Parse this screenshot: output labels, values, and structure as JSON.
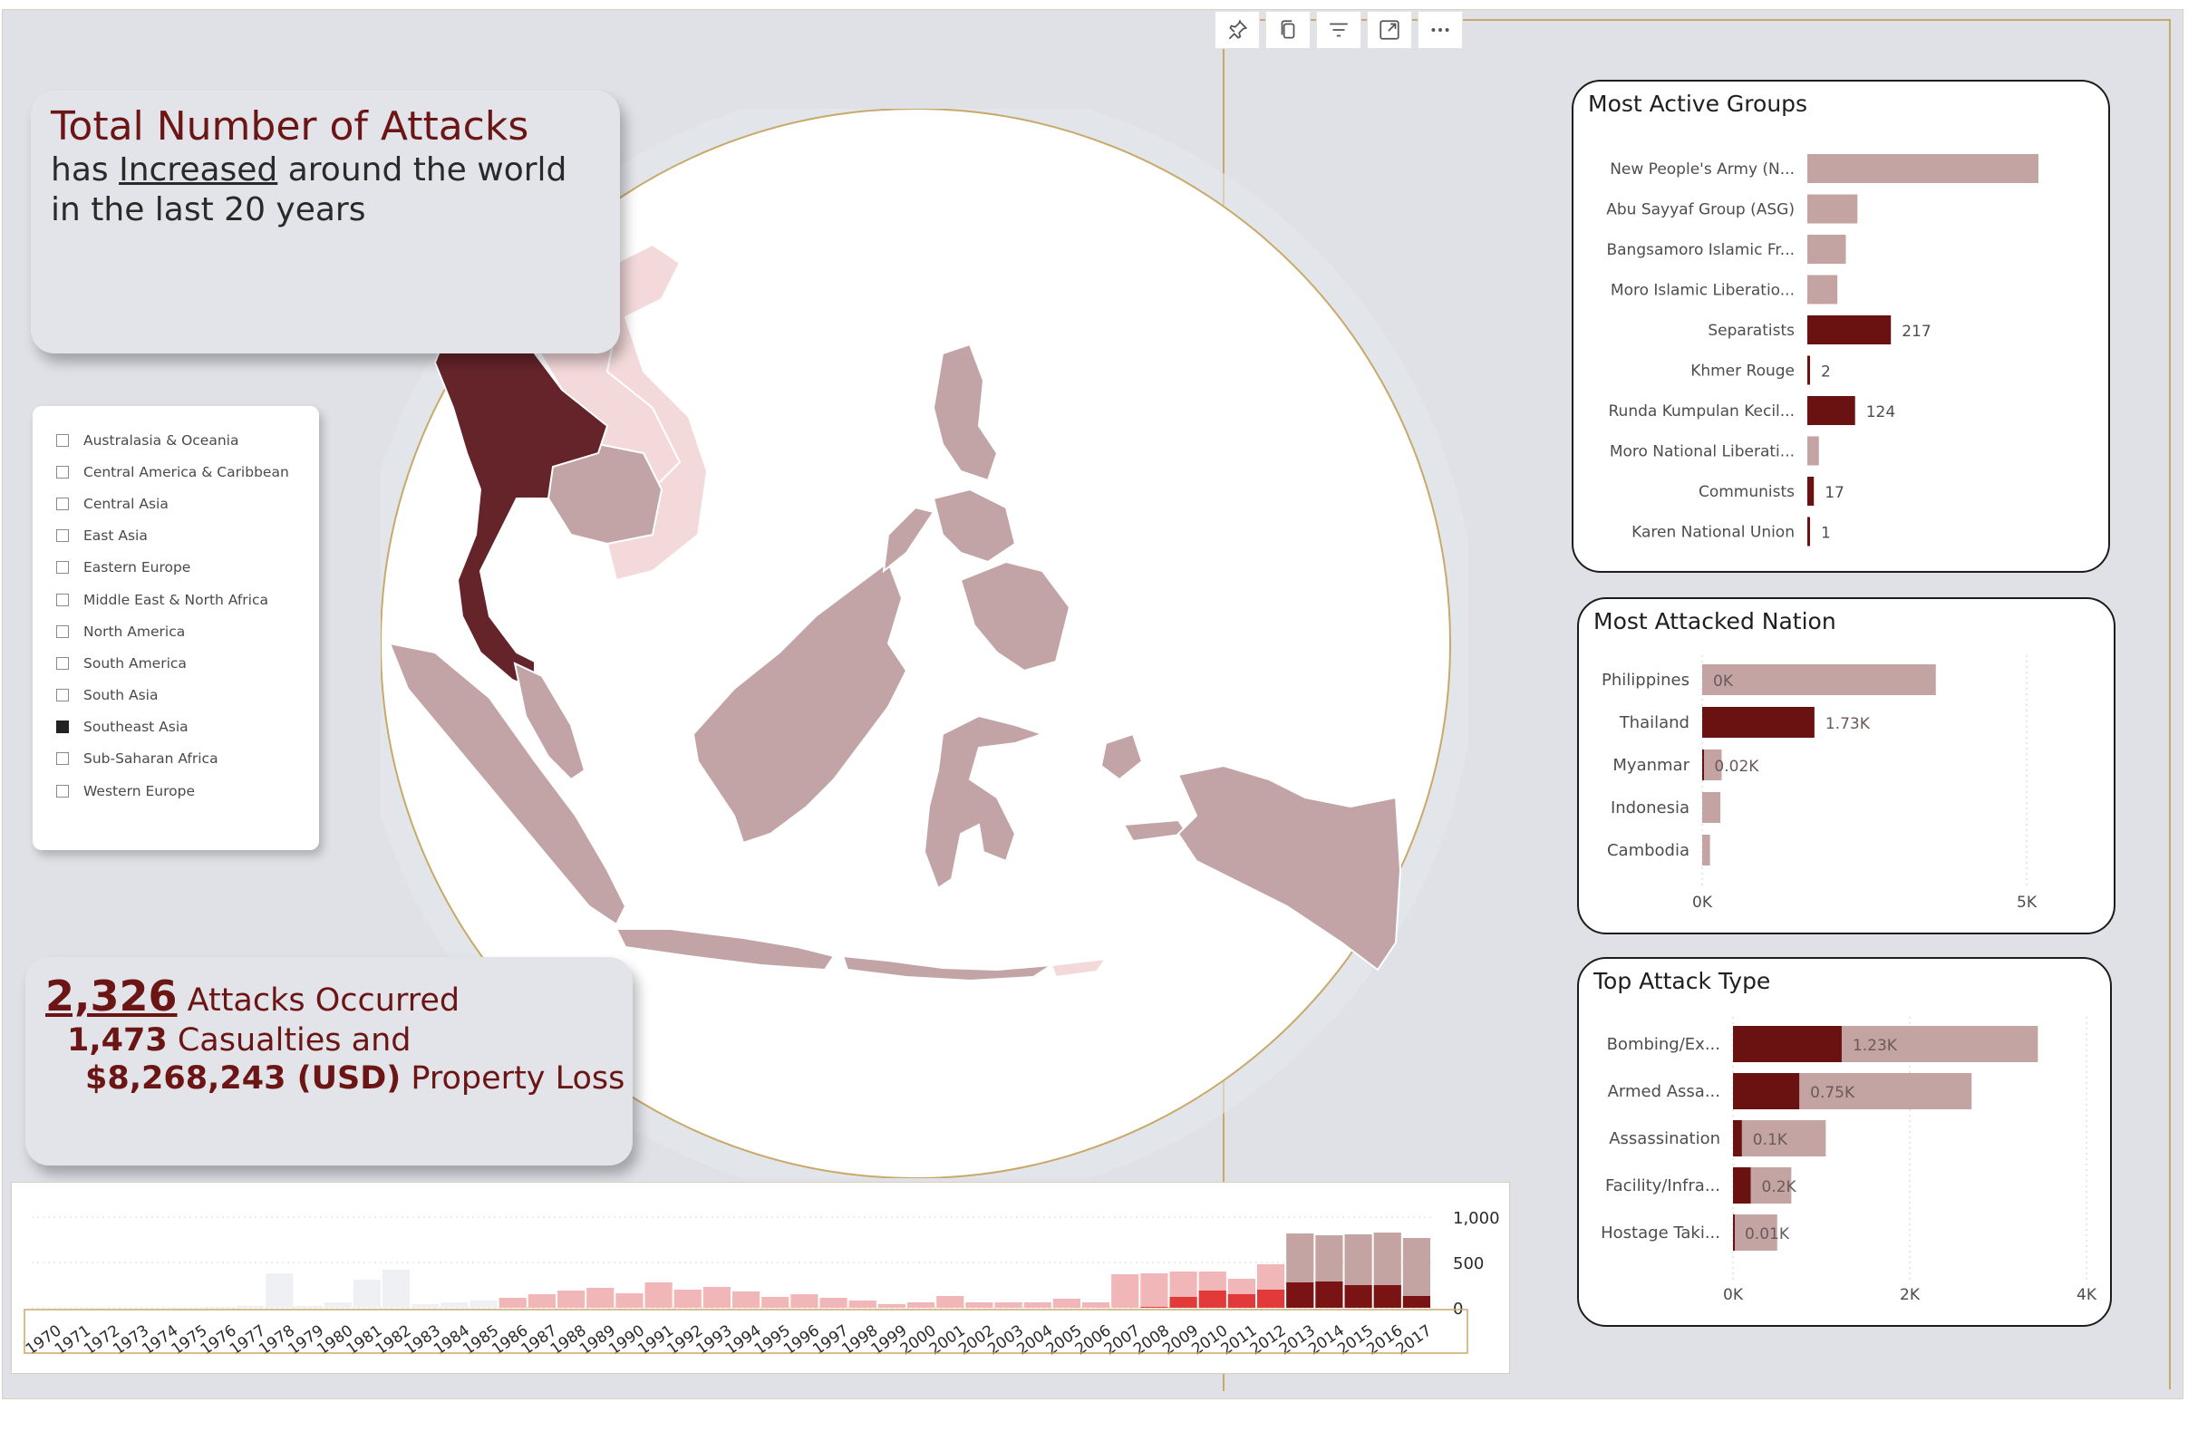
{
  "toolbar": {
    "icons": [
      "pin-icon",
      "copy-icon",
      "filter-icon",
      "expand-icon",
      "more-icon"
    ]
  },
  "title_card": {
    "line1": "Total Number of Attacks",
    "line2_pre": "has ",
    "line2_underlined": "Increased",
    "line2_post": " around the world",
    "line3": "in the last 20 years"
  },
  "region_filter": {
    "items": [
      {
        "label": "Australasia & Oceania",
        "checked": false
      },
      {
        "label": "Central America & Caribbean",
        "checked": false
      },
      {
        "label": "Central Asia",
        "checked": false
      },
      {
        "label": "East Asia",
        "checked": false
      },
      {
        "label": "Eastern Europe",
        "checked": false
      },
      {
        "label": "Middle East & North Africa",
        "checked": false
      },
      {
        "label": "North America",
        "checked": false
      },
      {
        "label": "South America",
        "checked": false
      },
      {
        "label": "South Asia",
        "checked": false
      },
      {
        "label": "Southeast Asia",
        "checked": true
      },
      {
        "label": "Sub-Saharan Africa",
        "checked": false
      },
      {
        "label": "Western Europe",
        "checked": false
      }
    ]
  },
  "stats": {
    "attacks": "2,326",
    "attacks_label": " Attacks Occurred",
    "casualties": "1,473",
    "casualties_label": " Casualties and",
    "property_loss": "$8,268,243 (USD)",
    "property_label": " Property Loss"
  },
  "colors": {
    "accent": "#6b1515",
    "bar_light": "#c4a3a3",
    "bar_dark": "#6a1212",
    "map_base": "#c2a4a6",
    "map_highlight": "#64242a",
    "map_faint": "#f3d9da",
    "gold": "#c9a96a"
  },
  "chart_data": [
    {
      "type": "bar",
      "title": "Most Active Groups",
      "categories": [
        "New People's Army (N...",
        "Abu Sayyaf Group (ASG)",
        "Bangsamoro Islamic Fr...",
        "Moro Islamic Liberatio...",
        "Separatists",
        "Khmer Rouge",
        "Runda Kumpulan Kecil...",
        "Moro National Liberati...",
        "Communists",
        "Karen National Union"
      ],
      "values": [
        600,
        130,
        100,
        78,
        217,
        2,
        124,
        30,
        17,
        1
      ],
      "highlighted": [
        false,
        false,
        false,
        false,
        true,
        true,
        true,
        false,
        true,
        true
      ],
      "data_labels": [
        "",
        "",
        "",
        "",
        "217",
        "2",
        "124",
        "",
        "17",
        "1"
      ]
    },
    {
      "type": "bar",
      "title": "Most Attacked Nation",
      "categories": [
        "Philippines",
        "Thailand",
        "Myanmar",
        "Indonesia",
        "Cambodia"
      ],
      "total_values": [
        3600,
        0,
        300,
        280,
        120
      ],
      "highlight_values": [
        0,
        1730,
        20,
        0,
        0
      ],
      "data_labels": [
        "0K",
        "1.73K",
        "0.02K",
        "",
        ""
      ],
      "xlim": [
        0,
        5000
      ],
      "x_ticks": [
        "0K",
        "5K"
      ]
    },
    {
      "type": "bar",
      "title": "Top Attack Type",
      "categories": [
        "Bombing/Ex...",
        "Armed Assa...",
        "Assassination",
        "Facility/Infra...",
        "Hostage Taki..."
      ],
      "total_values": [
        3450,
        2700,
        1050,
        660,
        500
      ],
      "highlight_values": [
        1230,
        750,
        100,
        200,
        10
      ],
      "data_labels": [
        "1.23K",
        "0.75K",
        "0.1K",
        "0.2K",
        "0.01K"
      ],
      "xlim": [
        0,
        4000
      ],
      "x_ticks": [
        "0K",
        "2K",
        "4K"
      ]
    },
    {
      "type": "bar",
      "title": "",
      "x": [
        "1970",
        "1971",
        "1972",
        "1973",
        "1974",
        "1975",
        "1976",
        "1977",
        "1978",
        "1979",
        "1980",
        "1981",
        "1982",
        "1983",
        "1984",
        "1985",
        "1986",
        "1987",
        "1988",
        "1989",
        "1990",
        "1991",
        "1992",
        "1993",
        "1994",
        "1995",
        "1996",
        "1997",
        "1998",
        "1999",
        "2000",
        "2001",
        "2002",
        "2003",
        "2004",
        "2005",
        "2006",
        "2007",
        "2008",
        "2009",
        "2010",
        "2011",
        "2012",
        "2013",
        "2014",
        "2015",
        "2016",
        "2017"
      ],
      "total_values": [
        5,
        5,
        5,
        5,
        5,
        5,
        10,
        20,
        380,
        20,
        60,
        310,
        420,
        40,
        60,
        80,
        110,
        150,
        190,
        220,
        160,
        280,
        200,
        230,
        180,
        120,
        150,
        110,
        80,
        40,
        60,
        130,
        60,
        60,
        60,
        100,
        60,
        370,
        380,
        400,
        400,
        320,
        480,
        820,
        800,
        810,
        830,
        770
      ],
      "highlight_values": [
        0,
        0,
        0,
        0,
        0,
        0,
        0,
        0,
        0,
        0,
        0,
        0,
        0,
        0,
        0,
        0,
        0,
        0,
        0,
        0,
        0,
        0,
        0,
        0,
        0,
        0,
        0,
        0,
        0,
        0,
        0,
        0,
        0,
        0,
        0,
        0,
        0,
        0,
        10,
        120,
        190,
        150,
        200,
        280,
        290,
        250,
        250,
        130
      ],
      "active_from": "1986",
      "ylim": [
        0,
        1000
      ],
      "y_ticks": [
        "1,000",
        "500",
        "0"
      ]
    }
  ]
}
